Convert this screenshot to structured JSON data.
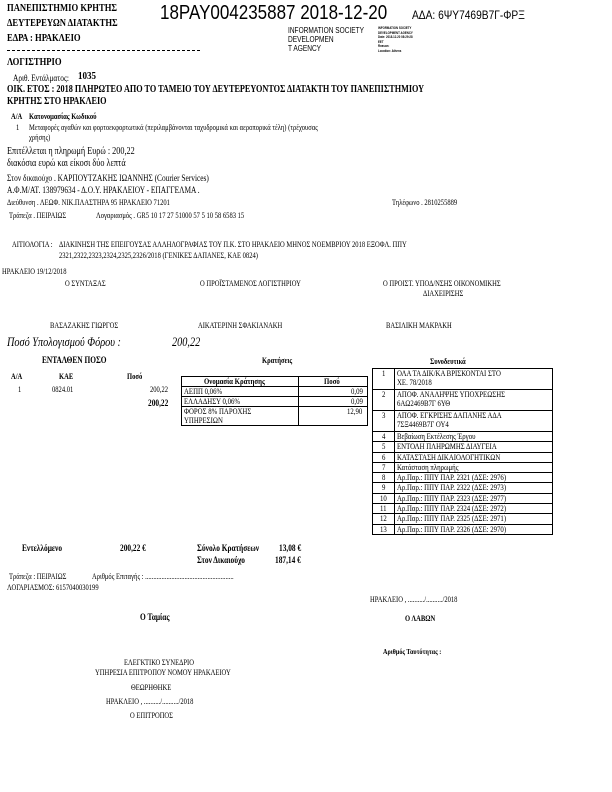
{
  "header": {
    "university": "ΠΑΝΕΠΙΣΤΗΜΙΟ ΚΡΗΤΗΣ",
    "authority": "ΔΕΥΤΕΡΕΥΩΝ ΔΙΑΤΑΚΤΗΣ",
    "seat": "ΕΔΡΑ : ΗΡΑΚΛΕΙΟ",
    "department": "ΛΟΓΙΣΤΗΡΙΟ",
    "doc_code": "18PAY004235887 2018-12-20",
    "ada": "ΑΔΑ: 6ΨΥ7469Β7Γ-ΦΡΞ",
    "stamp": [
      "INFORMATION SOCIETY",
      "DEVELOPMEN",
      "T AGENCY"
    ],
    "stamp_small": [
      "INFORMATION SOCIETY",
      "DEVELOPMENT AGENCY",
      "Date: 2018.12.20 08:29:28",
      "EET",
      "Reason:",
      "Location: Athens"
    ]
  },
  "order": {
    "number_label": "Αριθ. Εντάλματος:",
    "number": "1035",
    "title_line1": "ΟΙΚ. ΕΤΟΣ : 2018   ΠΛΗΡΩΤΕΟ ΑΠΟ  ΤΟ ΤΑΜΕΙΟ ΤΟΥ ΔΕΥΤΕΡΕΥΟΝΤΟΣ ΔΙΑΤΑΚΤΗ ΤΟΥ ΠΑΝΕΠΙΣΤΗΜΙΟΥ",
    "title_line2": "ΚΡΗΤΗΣ ΣΤΟ ΗΡΑΚΛΕΙΟ"
  },
  "category": {
    "aa_label": "Α/Α",
    "header": "Κατονομασίας Κωδικού",
    "item_no": "1",
    "item_line1": "Μεταφορές αγαθών και φορτοεκφορτωτικά (περιλαμβάνονται ταχυδρομικά και αεροπορικά τέλη) (τρέχουσας",
    "item_line2": "χρήσης)"
  },
  "payment": {
    "amount_line": "Επιτέλλεται η πληρωμή Ευρώ : 200,22",
    "amount_words": "διακόσια ευρώ  και είκοσι δύο  λεπτά",
    "payee": "Στον δικαιούχο . ΚΑΡΠΟΥΤΖΑΚΗΣ ΙΩΑΝΝΗΣ (Courier Services)",
    "afm": "Α.Φ.Μ/ΑΤ. 138979634   -  Δ.Ο.Υ. ΗΡΑΚΛΕΙΟΥ     -   ΕΠΑΓΓΕΛΜΑ .",
    "address": "Διεύθυνση . ΛΕΩΦ. ΝΙΚ.ΠΛΑΣΤΗΡΑ 95 ΗΡΑΚΛΕΙΟ 71201",
    "phone": "Τηλέφωνο . 2810255889",
    "bank": "Τράπεζα . ΠΕΙΡΑΙΩΣ",
    "account": "Λογαριασμός . GR5 10 17 27 51000 57 5 10 58 6583 15"
  },
  "justification": {
    "label": "ΑΙΤΙΟΛΟΓΙΑ :",
    "line1": "ΔΙΑΚΙΝΗΣΗ  ΤΗΣ  ΕΠΕΙΓΟΥΣΑΣ  ΑΛΛΗΛΟΓΡΑΦΙΑΣ  ΤΟΥ  Π.Κ.  ΣΤΟ  ΗΡΑΚΛΕΙΟ  ΜΗΝΟΣ  ΝΟΕΜΒΡΙΟΥ  2018  ΕΞΟΦΛ.  ΠΠΥ",
    "line2": "2321,2322,2323,2324,2325,2326/2018  (ΓΕΝΙΚΕΣ ΔΑΠΑΝΕΣ, ΚΑΕ 0824)"
  },
  "place_date": "ΗΡΑΚΛΕΙΟ  19/12/2018",
  "signatures": [
    {
      "role": "Ο ΣΥΝΤΑΞΑΣ",
      "role2": "",
      "name": "ΒΑΣΑΖΑΚΗΣ ΓΙΩΡΓΟΣ"
    },
    {
      "role": "Ο ΠΡΟΪΣΤΑΜΕΝΟΣ ΛΟΓΙΣΤΗΡΙΟΥ",
      "role2": "",
      "name": "ΑΙΚΑΤΕΡΙΝΗ ΣΦΑΚΙΑΝΑΚΗ"
    },
    {
      "role": "Ο ΠΡΟΙΣΤ. ΥΠΟΔ/ΝΣΗΣ ΟΙΚΟΝΟΜΙΚΗΣ",
      "role2": "ΔΙΑΧΕΙΡΙΣΗΣ",
      "name": "ΒΑΣΙΛΙΚΗ ΜΑΚΡΑΚΗ"
    }
  ],
  "tax_calc": {
    "label": "Ποσό Υπολογισμού Φόρου :",
    "value": "200,22"
  },
  "ordered_amount": {
    "title": "ΕΝΤΑΛΘΕΝ ΠΟΣΟ",
    "headers": [
      "Α/Α",
      "ΚΑΕ",
      "Ποσό"
    ],
    "rows": [
      {
        "aa": "1",
        "kae": "0824.01",
        "amount": "200,22"
      }
    ],
    "total": "200,22"
  },
  "deductions": {
    "title": "Κρατήσεις",
    "headers": [
      "Ονομασία Κράτησης",
      "Ποσό"
    ],
    "rows": [
      {
        "name": "ΑΕΠΠ 0,06%",
        "name2": "",
        "amount": "0,09"
      },
      {
        "name": "ΕΛΛΑΔΗΣΥ 0,06%",
        "name2": "",
        "amount": "0,09"
      },
      {
        "name": "ΦΟΡΟΣ 8% ΠΑΡΟΧΗΣ",
        "name2": "ΥΠΗΡΕΣΙΩΝ",
        "amount": "12,90"
      }
    ]
  },
  "attachments": {
    "title": "Συνοδευτικά",
    "rows": [
      {
        "no": "1",
        "text": "ΟΛΑ ΤΑ ΔΙΚ/ΚΑ ΒΡΙΣΚΟΝΤΑΙ ΣΤΟ",
        "text2": "ΧΕ. 78/2018"
      },
      {
        "no": "2",
        "text": "ΑΠΟΦ. ΑΝΑΛΗΨΗΣ ΥΠΟΧΡΕΩΣΗΣ",
        "text2": "6ΑΩ2469Β7Γ 6ΥΘ"
      },
      {
        "no": "3",
        "text": "ΑΠΟΦ. ΕΓΚΡΙΣΗΣ ΔΑΠΑΝΗΣ ΑΔΑ",
        "text2": "7ΣΞ4469Β7Γ ΟΥ4"
      },
      {
        "no": "4",
        "text": "Βεβαίωση Εκτέλεσης Έργου",
        "text2": ""
      },
      {
        "no": "5",
        "text": "ΕΝΤΟΛΗ ΠΛΗΡΩΜΗΣ   ΔΙΑΥΓΕΙΑ",
        "text2": ""
      },
      {
        "no": "6",
        "text": "ΚΑΤΑΣΤΑΣΗ ΔΙΚΑΙΟΛΟΓΗΤΙΚΩΝ",
        "text2": ""
      },
      {
        "no": "7",
        "text": "Κατάσταση πληρωμής",
        "text2": ""
      },
      {
        "no": "8",
        "text": "Αρ.Παρ.:  ΠΠΥ ΠΑΡ. 2321 (ΔΣΕ: 2976)",
        "text2": ""
      },
      {
        "no": "9",
        "text": "Αρ.Παρ.:  ΠΠΥ ΠΑΡ. 2322 (ΔΣΕ: 2973)",
        "text2": ""
      },
      {
        "no": "10",
        "text": "Αρ.Παρ.:  ΠΠΥ ΠΑΡ. 2323 (ΔΣΕ: 2977)",
        "text2": ""
      },
      {
        "no": "11",
        "text": "Αρ.Παρ.:  ΠΠΥ ΠΑΡ. 2324 (ΔΣΕ: 2972)",
        "text2": ""
      },
      {
        "no": "12",
        "text": "Αρ.Παρ.:  ΠΠΥ ΠΑΡ. 2325 (ΔΣΕ: 2971)",
        "text2": ""
      },
      {
        "no": "13",
        "text": "Αρ.Παρ.:  ΠΠΥ ΠΑΡ. 2326 (ΔΣΕ: 2970)",
        "text2": ""
      }
    ]
  },
  "totals": {
    "ordered_label": "Εντελλόμενο",
    "ordered_value": "200,22 €",
    "deductions_label": "Σύνολο Κρατήσεων",
    "deductions_value": "13,08 €",
    "payee_label": "Στον Δικαιούχο",
    "payee_value": "187,14 €"
  },
  "bank_info": {
    "bank": "Τράπεζα : ΠΕΙΡΑΙΩΣ",
    "check": "Αριθμός Επιταγής  :  ......................................................",
    "account": "ΛΟΓΑΡΙΑΣΜΟΣ:    6157040030199"
  },
  "footer": {
    "place_date": "ΗΡΑΚΛΕΙΟ , ........../........../2018",
    "cashier": "Ο Ταμίας",
    "receiver": "Ο ΛΑΒΩΝ",
    "id_number": "Αριθμός Ταυτότητας :",
    "audit1": "ΕΛΕΓΚΤΙΚΟ ΣΥΝΕΔΡΙΟ",
    "audit2": "ΥΠΗΡΕΣΙΑ ΕΠΙΤΡΟΠΟΥ ΝΟΜΟΥ ΗΡΑΚΛΕΙΟΥ",
    "approved": "ΘΕΩΡΗΘΗΚΕ",
    "audit_date": "ΗΡΑΚΛΕΙΟ , ........../........../2018",
    "commissioner": "Ο ΕΠΙΤΡΟΠΟΣ"
  }
}
